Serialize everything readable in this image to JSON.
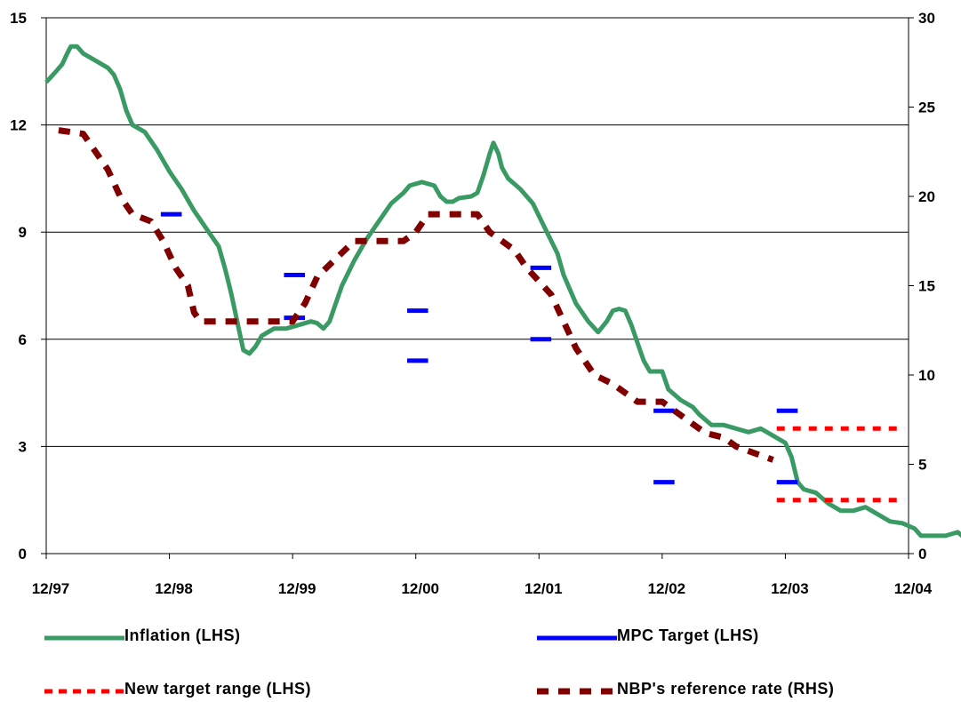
{
  "chart_data": {
    "type": "line",
    "title": "",
    "xlabel": "",
    "ylabel": "",
    "x_ticks": [
      "12/97",
      "12/98",
      "12/99",
      "12/00",
      "12/01",
      "12/02",
      "12/03",
      "12/04"
    ],
    "y_left": {
      "min": 0,
      "max": 15,
      "ticks": [
        "0",
        "3",
        "6",
        "9",
        "12",
        "15"
      ]
    },
    "y_right": {
      "min": 0,
      "max": 30,
      "ticks": [
        "0",
        "5",
        "10",
        "15",
        "20",
        "25",
        "30"
      ]
    },
    "grid": "horizontal",
    "legend_position": "bottom",
    "series": [
      {
        "name": "Inflation (LHS)",
        "axis": "left",
        "color": "#3a9a64",
        "style": "solid",
        "points": [
          [
            0.0,
            13.2
          ],
          [
            0.08,
            13.5
          ],
          [
            0.13,
            13.7
          ],
          [
            0.17,
            14.0
          ],
          [
            0.2,
            14.2
          ],
          [
            0.25,
            14.2
          ],
          [
            0.3,
            14.0
          ],
          [
            0.4,
            13.8
          ],
          [
            0.5,
            13.6
          ],
          [
            0.55,
            13.4
          ],
          [
            0.6,
            13.0
          ],
          [
            0.65,
            12.4
          ],
          [
            0.7,
            12.0
          ],
          [
            0.8,
            11.8
          ],
          [
            0.9,
            11.3
          ],
          [
            1.0,
            10.7
          ],
          [
            1.1,
            10.2
          ],
          [
            1.2,
            9.6
          ],
          [
            1.3,
            9.1
          ],
          [
            1.4,
            8.6
          ],
          [
            1.45,
            8.0
          ],
          [
            1.5,
            7.3
          ],
          [
            1.55,
            6.5
          ],
          [
            1.6,
            5.7
          ],
          [
            1.65,
            5.6
          ],
          [
            1.7,
            5.8
          ],
          [
            1.75,
            6.1
          ],
          [
            1.85,
            6.3
          ],
          [
            1.95,
            6.3
          ],
          [
            2.05,
            6.4
          ],
          [
            2.15,
            6.5
          ],
          [
            2.2,
            6.45
          ],
          [
            2.25,
            6.3
          ],
          [
            2.3,
            6.5
          ],
          [
            2.4,
            7.5
          ],
          [
            2.5,
            8.2
          ],
          [
            2.6,
            8.8
          ],
          [
            2.7,
            9.3
          ],
          [
            2.8,
            9.8
          ],
          [
            2.9,
            10.1
          ],
          [
            2.95,
            10.3
          ],
          [
            3.05,
            10.4
          ],
          [
            3.15,
            10.3
          ],
          [
            3.2,
            10.0
          ],
          [
            3.25,
            9.85
          ],
          [
            3.3,
            9.85
          ],
          [
            3.35,
            9.95
          ],
          [
            3.45,
            10.0
          ],
          [
            3.5,
            10.1
          ],
          [
            3.55,
            10.6
          ],
          [
            3.6,
            11.2
          ],
          [
            3.63,
            11.5
          ],
          [
            3.67,
            11.2
          ],
          [
            3.7,
            10.8
          ],
          [
            3.75,
            10.5
          ],
          [
            3.85,
            10.2
          ],
          [
            3.95,
            9.8
          ],
          [
            4.05,
            9.1
          ],
          [
            4.15,
            8.4
          ],
          [
            4.2,
            7.8
          ],
          [
            4.3,
            7.0
          ],
          [
            4.4,
            6.5
          ],
          [
            4.48,
            6.2
          ],
          [
            4.55,
            6.5
          ],
          [
            4.6,
            6.8
          ],
          [
            4.65,
            6.85
          ],
          [
            4.7,
            6.8
          ],
          [
            4.75,
            6.4
          ],
          [
            4.8,
            5.9
          ],
          [
            4.85,
            5.4
          ],
          [
            4.9,
            5.1
          ],
          [
            5.0,
            5.1
          ],
          [
            5.05,
            4.6
          ],
          [
            5.15,
            4.3
          ],
          [
            5.25,
            4.1
          ],
          [
            5.3,
            3.9
          ],
          [
            5.4,
            3.6
          ],
          [
            5.5,
            3.6
          ],
          [
            5.6,
            3.5
          ],
          [
            5.7,
            3.4
          ],
          [
            5.8,
            3.5
          ],
          [
            5.9,
            3.3
          ],
          [
            6.0,
            3.1
          ],
          [
            6.05,
            2.7
          ],
          [
            6.1,
            2.0
          ],
          [
            6.15,
            1.8
          ],
          [
            6.25,
            1.7
          ],
          [
            6.35,
            1.4
          ],
          [
            6.45,
            1.2
          ],
          [
            6.55,
            1.2
          ],
          [
            6.65,
            1.3
          ],
          [
            6.75,
            1.1
          ],
          [
            6.85,
            0.9
          ],
          [
            6.95,
            0.85
          ],
          [
            7.05,
            0.7
          ],
          [
            7.1,
            0.5
          ],
          [
            7.2,
            0.5
          ],
          [
            7.3,
            0.5
          ],
          [
            7.4,
            0.6
          ],
          [
            7.5,
            0.3
          ],
          [
            7.6,
            0.35
          ],
          [
            7.65,
            0.4
          ]
        ]
      },
      {
        "name": "MPC Target (LHS)",
        "axis": "left",
        "color": "#0000ff",
        "style": "segments",
        "segments": [
          {
            "x": [
              0.93,
              1.1
            ],
            "y": 9.5
          },
          {
            "x": [
              1.93,
              2.1
            ],
            "y": 7.8
          },
          {
            "x": [
              1.93,
              2.1
            ],
            "y": 6.6
          },
          {
            "x": [
              2.93,
              3.1
            ],
            "y": 6.8
          },
          {
            "x": [
              2.93,
              3.1
            ],
            "y": 5.4
          },
          {
            "x": [
              3.93,
              4.1
            ],
            "y": 8.0
          },
          {
            "x": [
              3.93,
              4.1
            ],
            "y": 6.0
          },
          {
            "x": [
              4.93,
              5.1
            ],
            "y": 4.0
          },
          {
            "x": [
              4.93,
              5.1
            ],
            "y": 2.0
          },
          {
            "x": [
              5.93,
              6.1
            ],
            "y": 4.0
          },
          {
            "x": [
              5.93,
              6.1
            ],
            "y": 2.0
          }
        ]
      },
      {
        "name": "New target range (LHS)",
        "axis": "left",
        "color": "#ff0000",
        "style": "dotted",
        "segments": [
          {
            "x": [
              5.93,
              6.97
            ],
            "y": 3.5
          },
          {
            "x": [
              5.93,
              6.97
            ],
            "y": 1.5
          }
        ]
      },
      {
        "name": "NBP's reference rate (RHS)",
        "axis": "right",
        "color": "#800000",
        "style": "dashed",
        "points": [
          [
            0.1,
            23.7
          ],
          [
            0.3,
            23.5
          ],
          [
            0.5,
            21.5
          ],
          [
            0.6,
            20.0
          ],
          [
            0.7,
            19.0
          ],
          [
            0.85,
            18.6
          ],
          [
            0.95,
            17.5
          ],
          [
            1.05,
            16.0
          ],
          [
            1.15,
            15.0
          ],
          [
            1.2,
            13.5
          ],
          [
            1.25,
            13.0
          ],
          [
            1.4,
            13.0
          ],
          [
            1.6,
            13.0
          ],
          [
            1.8,
            13.0
          ],
          [
            2.0,
            13.0
          ],
          [
            2.1,
            14.0
          ],
          [
            2.2,
            15.5
          ],
          [
            2.35,
            16.5
          ],
          [
            2.5,
            17.5
          ],
          [
            2.7,
            17.5
          ],
          [
            2.9,
            17.5
          ],
          [
            3.0,
            18.0
          ],
          [
            3.1,
            19.0
          ],
          [
            3.3,
            19.0
          ],
          [
            3.5,
            19.0
          ],
          [
            3.6,
            18.0
          ],
          [
            3.8,
            17.0
          ],
          [
            3.9,
            16.0
          ],
          [
            4.1,
            14.5
          ],
          [
            4.2,
            13.0
          ],
          [
            4.3,
            11.5
          ],
          [
            4.45,
            10.0
          ],
          [
            4.6,
            9.5
          ],
          [
            4.8,
            8.5
          ],
          [
            5.0,
            8.5
          ],
          [
            5.2,
            7.5
          ],
          [
            5.35,
            6.75
          ],
          [
            5.5,
            6.5
          ],
          [
            5.6,
            6.0
          ],
          [
            5.8,
            5.5
          ],
          [
            5.9,
            5.25
          ]
        ]
      }
    ]
  },
  "legend": {
    "items": [
      {
        "label": "Inflation (LHS)",
        "color": "#3a9a64",
        "style": "solid"
      },
      {
        "label": "MPC Target (LHS)",
        "color": "#0000ff",
        "style": "solid"
      },
      {
        "label": "New target range (LHS)",
        "color": "#ff0000",
        "style": "dotted"
      },
      {
        "label": "NBP's reference rate (RHS)",
        "color": "#800000",
        "style": "dashed"
      }
    ]
  }
}
